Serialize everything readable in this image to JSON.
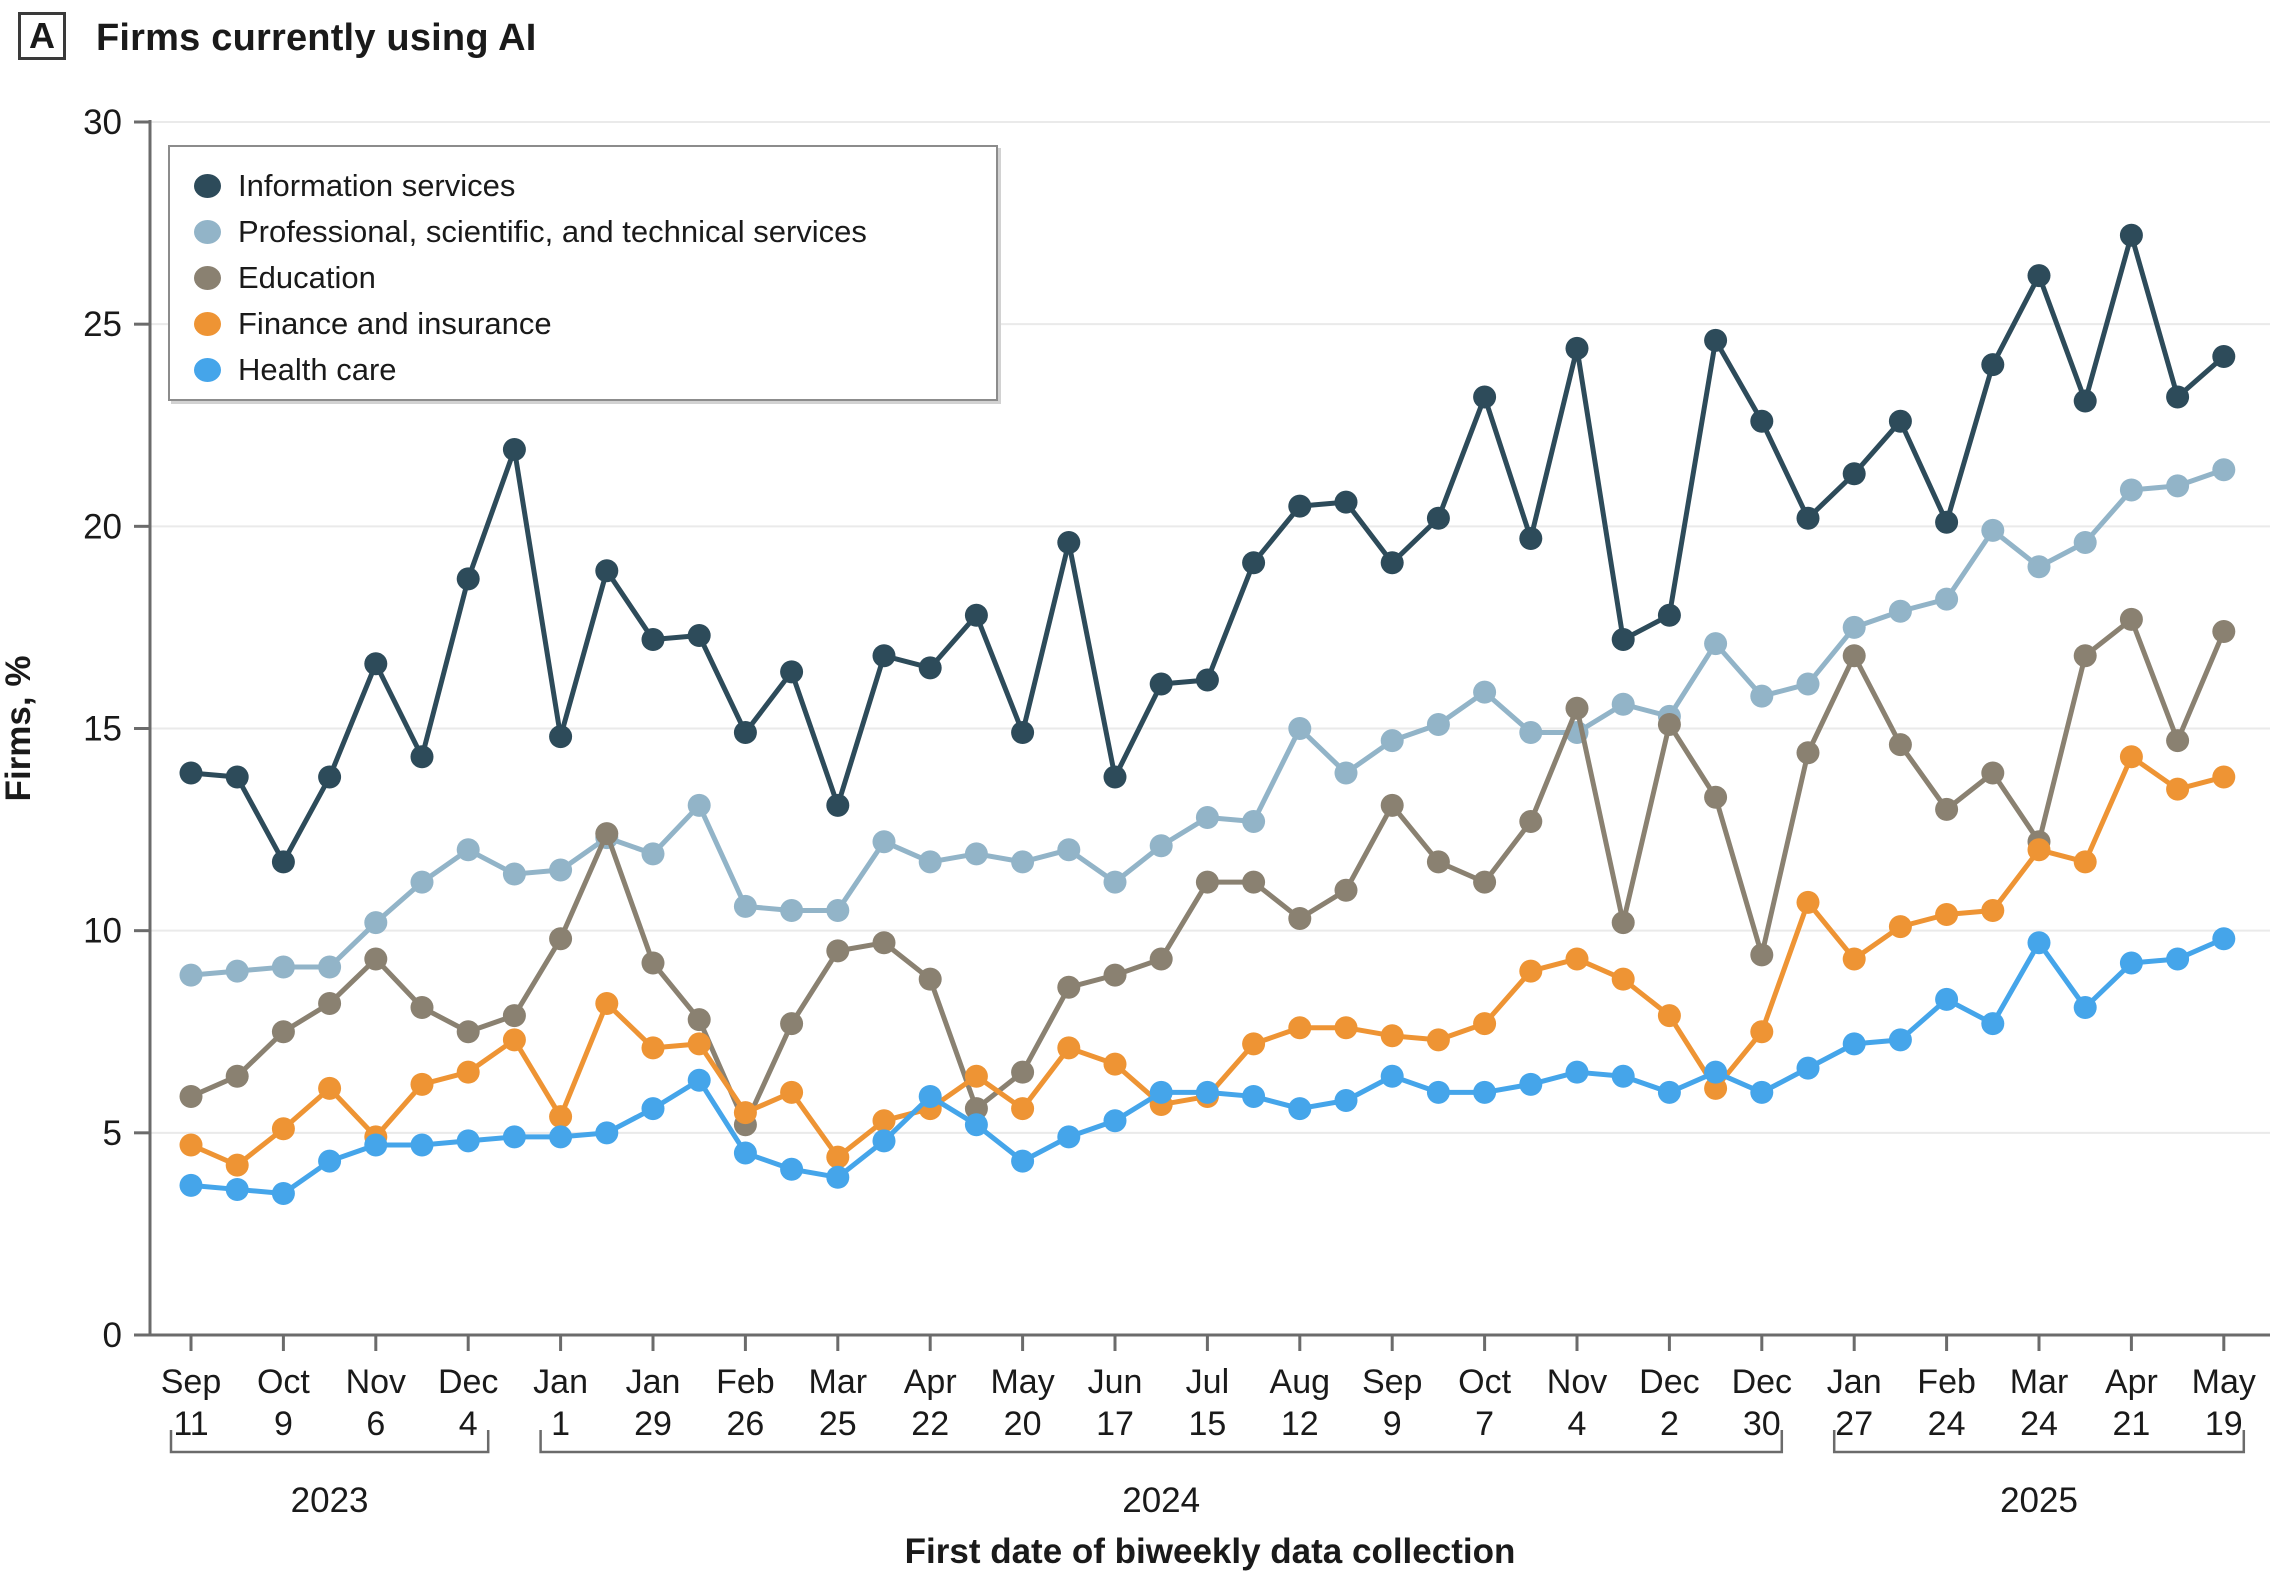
{
  "figure": {
    "panel_label": "A",
    "title": "Firms currently using AI"
  },
  "chart_data": {
    "type": "line",
    "title": "Firms currently using AI",
    "xlabel": "First date of biweekly data collection",
    "ylabel": "Firms, %",
    "ylim": [
      0,
      30
    ],
    "yticks": [
      0,
      5,
      10,
      15,
      20,
      25,
      30
    ],
    "grid": true,
    "legend_position": "top-left-inside",
    "n_points": 45,
    "x_frequency": "biweekly",
    "tick_labels": [
      {
        "month": "Sep",
        "day": "11"
      },
      {
        "month": "Oct",
        "day": "9"
      },
      {
        "month": "Nov",
        "day": "6"
      },
      {
        "month": "Dec",
        "day": "4"
      },
      {
        "month": "Jan",
        "day": "1"
      },
      {
        "month": "Jan",
        "day": "29"
      },
      {
        "month": "Feb",
        "day": "26"
      },
      {
        "month": "Mar",
        "day": "25"
      },
      {
        "month": "Apr",
        "day": "22"
      },
      {
        "month": "May",
        "day": "20"
      },
      {
        "month": "Jun",
        "day": "17"
      },
      {
        "month": "Jul",
        "day": "15"
      },
      {
        "month": "Aug",
        "day": "12"
      },
      {
        "month": "Sep",
        "day": "9"
      },
      {
        "month": "Oct",
        "day": "7"
      },
      {
        "month": "Nov",
        "day": "4"
      },
      {
        "month": "Dec",
        "day": "2"
      },
      {
        "month": "Dec",
        "day": "30"
      },
      {
        "month": "Jan",
        "day": "27"
      },
      {
        "month": "Feb",
        "day": "24"
      },
      {
        "month": "Mar",
        "day": "24"
      },
      {
        "month": "Apr",
        "day": "21"
      },
      {
        "month": "May",
        "day": "19"
      }
    ],
    "years": [
      {
        "label": "2023",
        "from_index": 0,
        "to_index": 6
      },
      {
        "label": "2024",
        "from_index": 8,
        "to_index": 34
      },
      {
        "label": "2025",
        "from_index": 36,
        "to_index": 44
      }
    ],
    "series": [
      {
        "name": "Information services",
        "color": "#2d4b5a",
        "values": [
          13.9,
          13.8,
          11.7,
          13.8,
          16.6,
          14.3,
          18.7,
          21.9,
          14.8,
          18.9,
          17.2,
          17.3,
          14.9,
          16.4,
          13.1,
          16.8,
          16.5,
          17.8,
          14.9,
          19.6,
          13.8,
          16.1,
          16.2,
          19.1,
          20.5,
          20.6,
          19.1,
          20.2,
          23.2,
          19.7,
          24.4,
          17.2,
          17.8,
          24.6,
          22.6,
          20.2,
          21.3,
          22.6,
          20.1,
          24.0,
          26.2,
          23.1,
          27.2,
          23.2,
          24.2
        ]
      },
      {
        "name": "Professional, scientific, and technical services",
        "color": "#92b4c8",
        "values": [
          8.9,
          9.0,
          9.1,
          9.1,
          10.2,
          11.2,
          12.0,
          11.4,
          11.5,
          12.3,
          11.9,
          13.1,
          10.6,
          10.5,
          10.5,
          12.2,
          11.7,
          11.9,
          11.7,
          12.0,
          11.2,
          12.1,
          12.8,
          12.7,
          15.0,
          13.9,
          14.7,
          15.1,
          15.9,
          14.9,
          14.9,
          15.6,
          15.3,
          17.1,
          15.8,
          16.1,
          17.5,
          17.9,
          18.2,
          19.9,
          19.0,
          19.6,
          20.9,
          21.0,
          21.4
        ]
      },
      {
        "name": "Education",
        "color": "#8a8171",
        "values": [
          5.9,
          6.4,
          7.5,
          8.2,
          9.3,
          8.1,
          7.5,
          7.9,
          9.8,
          12.4,
          9.2,
          7.8,
          5.2,
          7.7,
          9.5,
          9.7,
          8.8,
          5.6,
          6.5,
          8.6,
          8.9,
          9.3,
          11.2,
          11.2,
          10.3,
          11.0,
          13.1,
          11.7,
          11.2,
          12.7,
          15.5,
          10.2,
          15.1,
          13.3,
          9.4,
          14.4,
          16.8,
          14.6,
          13.0,
          13.9,
          12.2,
          16.8,
          17.7,
          14.7,
          17.4
        ]
      },
      {
        "name": "Finance and insurance",
        "color": "#ee9434",
        "values": [
          4.7,
          4.2,
          5.1,
          6.1,
          4.9,
          6.2,
          6.5,
          7.3,
          5.4,
          8.2,
          7.1,
          7.2,
          5.5,
          6.0,
          4.4,
          5.3,
          5.6,
          6.4,
          5.6,
          7.1,
          6.7,
          5.7,
          5.9,
          7.2,
          7.6,
          7.6,
          7.4,
          7.3,
          7.7,
          9.0,
          9.3,
          8.8,
          7.9,
          6.1,
          7.5,
          10.7,
          9.3,
          10.1,
          10.4,
          10.5,
          12.0,
          11.7,
          14.3,
          13.5,
          13.8
        ]
      },
      {
        "name": "Health care",
        "color": "#45a5ea",
        "values": [
          3.7,
          3.6,
          3.5,
          4.3,
          4.7,
          4.7,
          4.8,
          4.9,
          4.9,
          5.0,
          5.6,
          6.3,
          4.5,
          4.1,
          3.9,
          4.8,
          5.9,
          5.2,
          4.3,
          4.9,
          5.3,
          6.0,
          6.0,
          5.9,
          5.6,
          5.8,
          6.4,
          6.0,
          6.0,
          6.2,
          6.5,
          6.4,
          6.0,
          6.5,
          6.0,
          6.6,
          7.2,
          7.3,
          8.3,
          7.7,
          9.7,
          8.1,
          9.2,
          9.3,
          9.8
        ]
      }
    ]
  }
}
